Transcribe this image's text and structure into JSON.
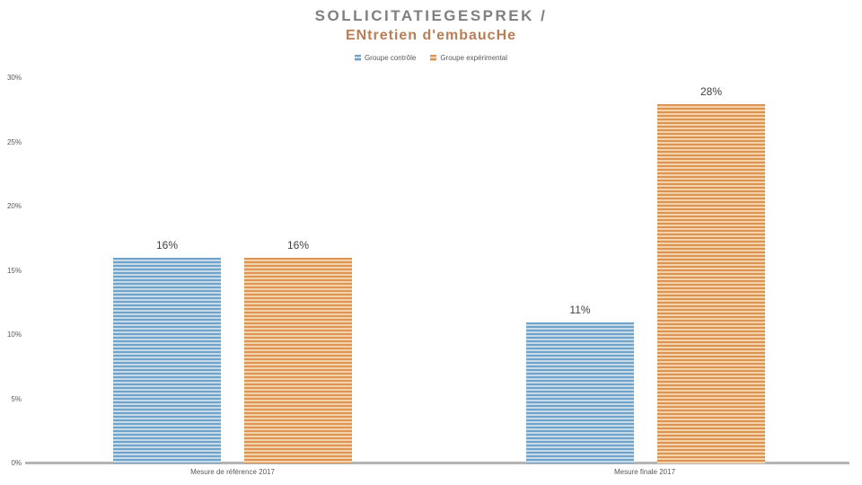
{
  "title": {
    "line1": "SOLLICITATIEGESPREK /",
    "line2": "ENtretien d'embaucHe"
  },
  "colors": {
    "title_primary": "#7F7F7F",
    "title_secondary": "#B97E55",
    "axis_line": "#B5B5B5",
    "tick_label": "#595959",
    "category_label": "#595959",
    "data_label": "#404040",
    "legend_label": "#595959"
  },
  "chart_data": {
    "type": "bar",
    "title": "SOLLICITATIEGESPREK / ENtretien d'embaucHe",
    "categories": [
      "Mesure de référence 2017",
      "Mesure finale 2017"
    ],
    "series": [
      {
        "name": "Groupe contrôle",
        "values": [
          16,
          11
        ],
        "color": "#6FA3C7",
        "stripe_dark": "#6FA3C7",
        "stripe_light": "#C6DAE9"
      },
      {
        "name": "Groupe expérimental",
        "values": [
          16,
          28
        ],
        "color": "#DE9355",
        "stripe_dark": "#DE9355",
        "stripe_light": "#F2D2A9"
      }
    ],
    "data_label_format": "{v}%",
    "data_labels": [
      "16%",
      "16%",
      "11%",
      "28%"
    ],
    "xlabel": "",
    "ylabel": "",
    "ylim": [
      0,
      30
    ],
    "yticks": [
      0,
      5,
      10,
      15,
      20,
      25,
      30
    ],
    "ytick_format": "{v}%",
    "grid": false,
    "legend_position": "top",
    "fill_pattern": "horizontal-stripes"
  }
}
